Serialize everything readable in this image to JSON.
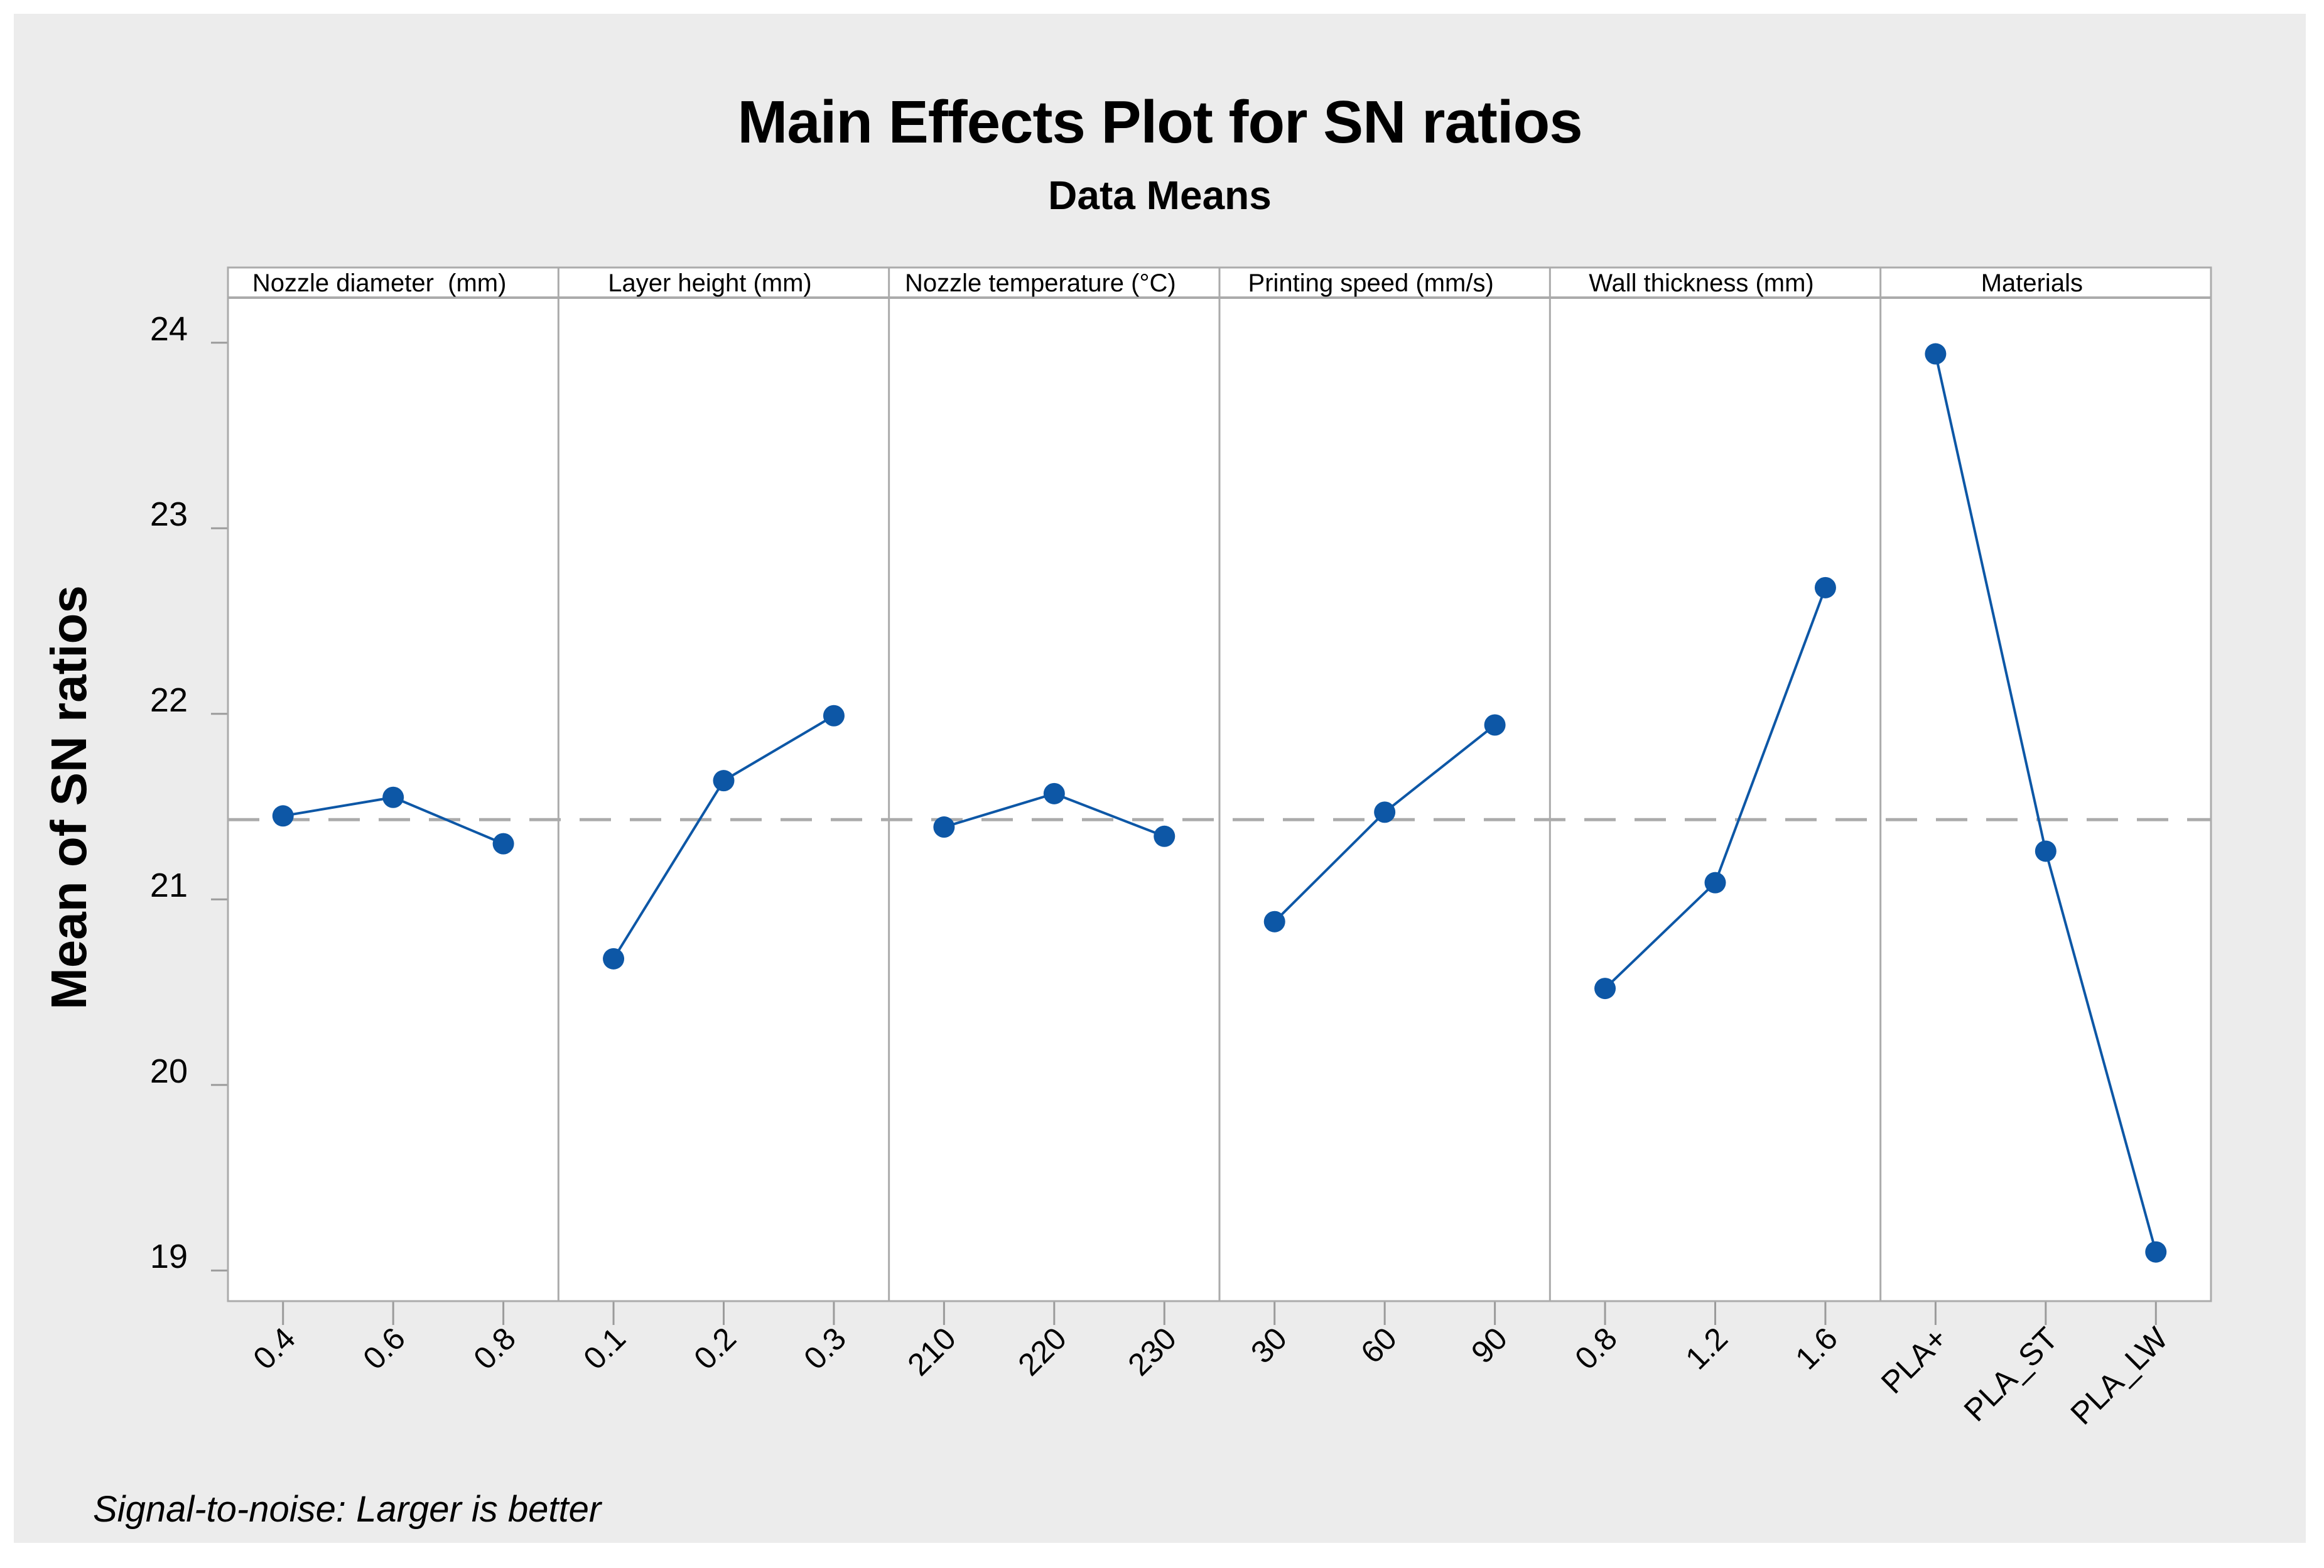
{
  "window": {
    "background": "#FFFFFF",
    "figure_background": "#ECECEC"
  },
  "chart_data": {
    "type": "line",
    "title": "Main Effects Plot for SN ratios",
    "subtitle": "Data Means",
    "ylabel": "Mean of SN ratios",
    "xlabel": "",
    "footnote": "Signal-to-noise: Larger is better",
    "grid": false,
    "legend": "none",
    "yticks": [
      19,
      20,
      21,
      22,
      23,
      24
    ],
    "ylim": [
      18.84,
      24.24
    ],
    "reference_line": 21.43,
    "panels": [
      {
        "factor": "Nozzle diameter  (mm)",
        "levels": [
          "0.4",
          "0.6",
          "0.8"
        ],
        "means": [
          21.45,
          21.55,
          21.3
        ]
      },
      {
        "factor": "Layer height (mm)",
        "levels": [
          "0.1",
          "0.2",
          "0.3"
        ],
        "means": [
          20.68,
          21.64,
          21.99
        ]
      },
      {
        "factor": "Nozzle temperature (°C)",
        "levels": [
          "210",
          "220",
          "230"
        ],
        "means": [
          21.39,
          21.57,
          21.34
        ]
      },
      {
        "factor": "Printing speed (mm/s)",
        "levels": [
          "30",
          "60",
          "90"
        ],
        "means": [
          20.88,
          21.47,
          21.94
        ]
      },
      {
        "factor": "Wall thickness (mm)",
        "levels": [
          "0.8",
          "1.2",
          "1.6"
        ],
        "means": [
          20.52,
          21.09,
          22.68
        ]
      },
      {
        "factor": "Materials",
        "levels": [
          "PLA+",
          "PLA_ST",
          "PLA_LW"
        ],
        "means": [
          23.94,
          21.26,
          19.1
        ]
      }
    ],
    "colors": {
      "series": "#0D57A6",
      "reference_line": "#ABABAB",
      "frame": "#ABABAB",
      "tick": "#9B9B9B",
      "panel_background": "#FFFFFF",
      "text": "#000000"
    }
  }
}
